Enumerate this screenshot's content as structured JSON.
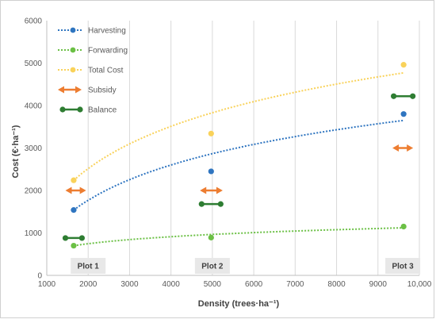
{
  "chart_data": {
    "type": "scatter",
    "xlabel": "Density (trees·ha⁻¹)",
    "ylabel": "Cost (€·ha⁻¹)",
    "xlim": [
      1000,
      10000
    ],
    "ylim": [
      0,
      6000
    ],
    "x_ticks": [
      "1000",
      "2000",
      "3000",
      "4000",
      "5000",
      "6000",
      "7000",
      "8000",
      "9000",
      "10,000"
    ],
    "y_ticks": [
      "0",
      "1000",
      "2000",
      "3000",
      "4000",
      "5000",
      "6000"
    ],
    "x_tick_values": [
      1000,
      2000,
      3000,
      4000,
      5000,
      6000,
      7000,
      8000,
      9000,
      10000
    ],
    "y_tick_values": [
      0,
      1000,
      2000,
      3000,
      4000,
      5000,
      6000
    ],
    "grid": "vertical",
    "legend_position": "top-left",
    "series": [
      {
        "name": "Harvesting",
        "color": "#2f75c0",
        "points": [
          [
            1650,
            1540
          ],
          [
            4970,
            2450
          ],
          [
            9620,
            3800
          ]
        ],
        "trend": [
          [
            1650,
            1540
          ],
          [
            9620,
            3650
          ]
        ]
      },
      {
        "name": "Forwarding",
        "color": "#6bc045",
        "points": [
          [
            1650,
            700
          ],
          [
            4970,
            890
          ],
          [
            9620,
            1150
          ]
        ],
        "trend": [
          [
            1650,
            700
          ],
          [
            9620,
            1120
          ]
        ]
      },
      {
        "name": "Total Cost",
        "color": "#f9d25a",
        "points": [
          [
            1650,
            2240
          ],
          [
            4970,
            3340
          ],
          [
            9620,
            4960
          ]
        ],
        "trend": [
          [
            1650,
            2240
          ],
          [
            9620,
            4770
          ]
        ]
      }
    ],
    "subsidy": {
      "name": "Subsidy",
      "color": "#ed7d31",
      "ranges": [
        {
          "from": 1450,
          "to": 1950,
          "y": 2000
        },
        {
          "from": 4700,
          "to": 5250,
          "y": 2000
        },
        {
          "from": 9350,
          "to": 9850,
          "y": 3000
        }
      ]
    },
    "balance": {
      "name": "Balance",
      "color": "#2e7d32",
      "ranges": [
        {
          "from": 1450,
          "to": 1850,
          "y": 880
        },
        {
          "from": 4740,
          "to": 5200,
          "y": 1680
        },
        {
          "from": 9380,
          "to": 9840,
          "y": 4220
        }
      ]
    },
    "annotations": [
      {
        "text": "Plot 1",
        "x": 2000
      },
      {
        "text": "Plot 2",
        "x": 5000
      },
      {
        "text": "Plot 3",
        "x": 9600
      }
    ]
  }
}
